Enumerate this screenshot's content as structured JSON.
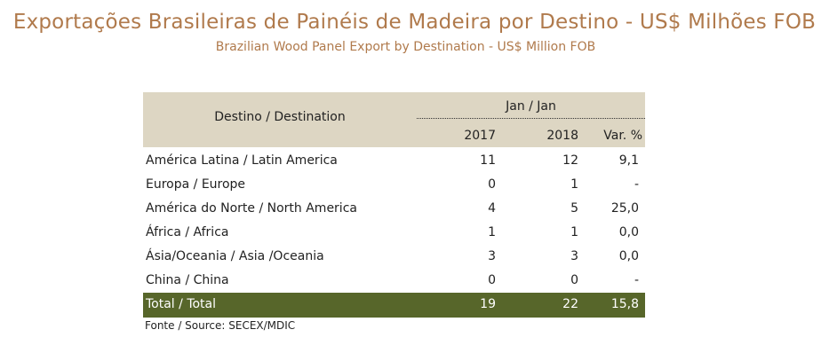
{
  "title": "Exportações Brasileiras de Painéis de Madeira por Destino - US$ Milhões FOB",
  "subtitle": "Brazilian Wood Panel Export by Destination - US$ Million FOB",
  "table": {
    "header": {
      "destination": "Destino / Destination",
      "period": "Jan / Jan",
      "col_2017": "2017",
      "col_2018": "2018",
      "col_var": "Var. %"
    },
    "rows": [
      {
        "label": "América Latina / Latin America",
        "v2017": "11",
        "v2018": "12",
        "var": "9,1"
      },
      {
        "label": "Europa / Europe",
        "v2017": "0",
        "v2018": "1",
        "var": "-"
      },
      {
        "label": "América do Norte / North America",
        "v2017": "4",
        "v2018": "5",
        "var": "25,0"
      },
      {
        "label": "África / Africa",
        "v2017": "1",
        "v2018": "1",
        "var": "0,0"
      },
      {
        "label": "Ásia/Oceania / Asia /Oceania",
        "v2017": "3",
        "v2018": "3",
        "var": "0,0"
      },
      {
        "label": "China / China",
        "v2017": "0",
        "v2018": "0",
        "var": "-"
      }
    ],
    "total": {
      "label": "Total / Total",
      "v2017": "19",
      "v2018": "22",
      "var": "15,8"
    }
  },
  "source": "Fonte / Source: SECEX/MDIC",
  "colors": {
    "title": "#b07a4c",
    "header_bg": "#ddd6c3",
    "total_bg": "#57662a"
  }
}
